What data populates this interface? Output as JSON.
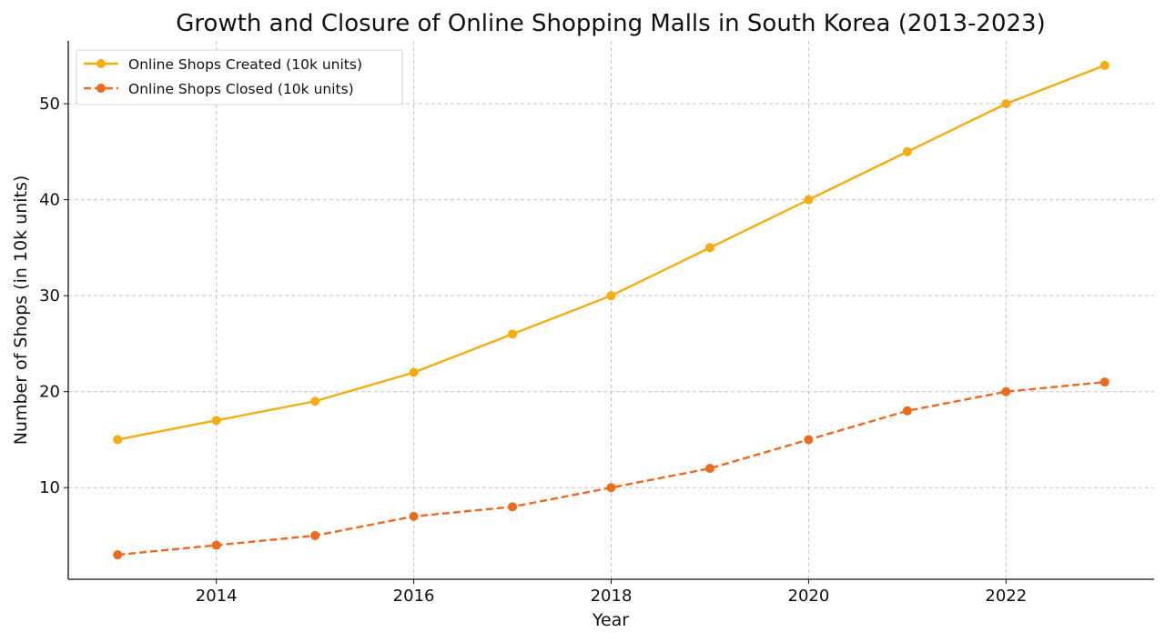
{
  "chart_data": {
    "type": "line",
    "title": "Growth and Closure of Online Shopping Malls in South Korea (2013-2023)",
    "xlabel": "Year",
    "ylabel": "Number of Shops (in 10k units)",
    "x": [
      2013,
      2014,
      2015,
      2016,
      2017,
      2018,
      2019,
      2020,
      2021,
      2022,
      2023
    ],
    "xlim": [
      2012.5,
      2023.5
    ],
    "ylim": [
      0.45,
      56.55
    ],
    "xticks": [
      2014,
      2016,
      2018,
      2020,
      2022
    ],
    "xtick_labels": [
      "2014",
      "2016",
      "2018",
      "2020",
      "2022"
    ],
    "yticks": [
      10,
      20,
      30,
      40,
      50
    ],
    "ytick_labels": [
      "10",
      "20",
      "30",
      "40",
      "50"
    ],
    "grid": true,
    "legend_position": "top-left",
    "series": [
      {
        "name": "Online Shops Created (10k units)",
        "values": [
          15,
          17,
          19,
          22,
          26,
          30,
          35,
          40,
          45,
          50,
          54
        ],
        "color": "#F5AC10",
        "line_style": "solid",
        "marker": "circle"
      },
      {
        "name": "Online Shops Closed (10k units)",
        "values": [
          3,
          4,
          5,
          7,
          8,
          10,
          12,
          15,
          18,
          20,
          21
        ],
        "color": "#EB6A1E",
        "line_style": "dashed",
        "marker": "circle"
      }
    ]
  }
}
